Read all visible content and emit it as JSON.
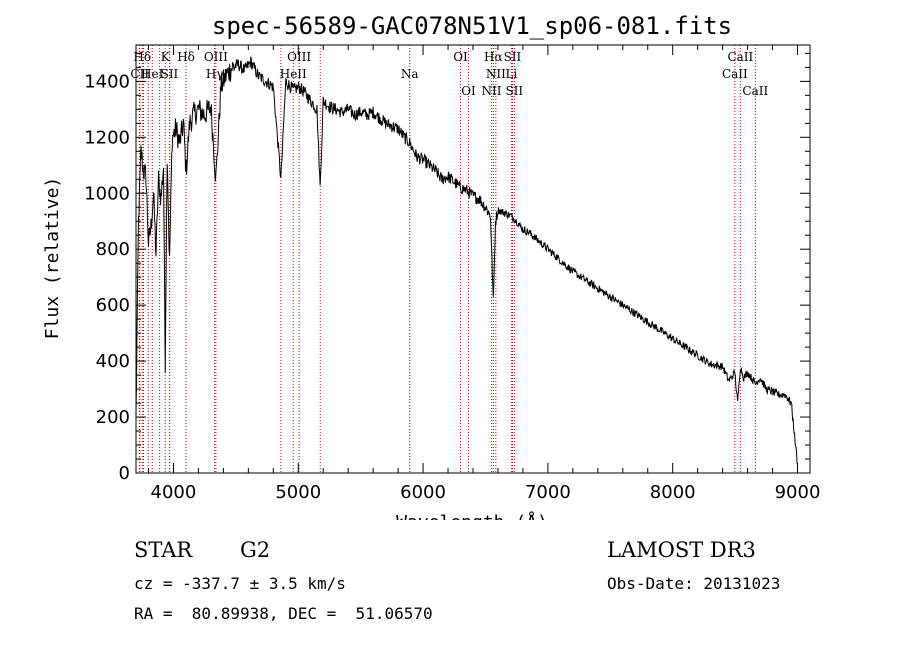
{
  "chart_data": {
    "type": "line",
    "title": "spec-56589-GAC078N51V1_sp06-081.fits",
    "xlabel": "Wavelength (Å)",
    "ylabel": "Flux (relative)",
    "xlim": [
      3700,
      9100
    ],
    "ylim": [
      0,
      1530
    ],
    "xticks": [
      4000,
      5000,
      6000,
      7000,
      8000,
      9000
    ],
    "xtick_labels": [
      "4000",
      "5000",
      "6000",
      "7000",
      "8000",
      "9000"
    ],
    "yticks": [
      0,
      200,
      400,
      600,
      800,
      1000,
      1200,
      1400
    ],
    "ytick_labels": [
      "0",
      "200",
      "400",
      "600",
      "800",
      "1000",
      "1200",
      "1400"
    ],
    "spectrum": {
      "x": [
        3700,
        3720,
        3740,
        3760,
        3780,
        3800,
        3820,
        3840,
        3860,
        3880,
        3900,
        3920,
        3934,
        3950,
        3968,
        3990,
        4020,
        4050,
        4080,
        4101,
        4130,
        4160,
        4200,
        4250,
        4300,
        4340,
        4380,
        4420,
        4470,
        4520,
        4570,
        4620,
        4680,
        4740,
        4800,
        4861,
        4900,
        4960,
        5007,
        5050,
        5100,
        5150,
        5175,
        5200,
        5250,
        5300,
        5350,
        5400,
        5450,
        5500,
        5550,
        5600,
        5650,
        5700,
        5750,
        5800,
        5850,
        5893,
        5950,
        6000,
        6050,
        6100,
        6150,
        6200,
        6250,
        6300,
        6350,
        6400,
        6450,
        6500,
        6540,
        6563,
        6580,
        6600,
        6650,
        6700,
        6750,
        6800,
        6850,
        6900,
        6950,
        7000,
        7100,
        7200,
        7300,
        7400,
        7500,
        7600,
        7700,
        7800,
        7900,
        8000,
        8100,
        8200,
        8300,
        8400,
        8450,
        8498,
        8520,
        8542,
        8570,
        8600,
        8662,
        8700,
        8750,
        8800,
        8850,
        8900,
        8950,
        9000
      ],
      "y": [
        200,
        900,
        1150,
        1080,
        1060,
        820,
        880,
        1000,
        780,
        1050,
        980,
        1100,
        400,
        1150,
        750,
        1200,
        1230,
        1180,
        1250,
        1080,
        1250,
        1280,
        1300,
        1280,
        1310,
        1050,
        1380,
        1420,
        1450,
        1460,
        1440,
        1470,
        1420,
        1400,
        1380,
        1050,
        1400,
        1370,
        1380,
        1360,
        1330,
        1300,
        1020,
        1330,
        1310,
        1300,
        1290,
        1300,
        1280,
        1290,
        1280,
        1290,
        1270,
        1250,
        1240,
        1230,
        1200,
        1180,
        1130,
        1120,
        1100,
        1080,
        1050,
        1060,
        1040,
        1020,
        1010,
        990,
        980,
        950,
        920,
        610,
        900,
        940,
        930,
        920,
        900,
        870,
        860,
        840,
        820,
        800,
        760,
        720,
        690,
        660,
        630,
        600,
        570,
        540,
        510,
        480,
        450,
        420,
        390,
        380,
        330,
        360,
        250,
        380,
        340,
        360,
        320,
        340,
        300,
        290,
        280,
        280,
        250,
        30
      ]
    },
    "lines": [
      {
        "label": "Hδ",
        "wl": 3750,
        "row": 0
      },
      {
        "label": "CII",
        "wl": 3730,
        "row": 1
      },
      {
        "label": "HeI",
        "wl": 3830,
        "row": 1
      },
      {
        "label": "K",
        "wl": 3934,
        "row": 0
      },
      {
        "label": "SII",
        "wl": 3968,
        "row": 1
      },
      {
        "label": "Hδ",
        "wl": 4101,
        "row": 0
      },
      {
        "label": "OIII",
        "wl": 4340,
        "row": 0
      },
      {
        "label": "Hγ",
        "wl": 4330,
        "row": 1
      },
      {
        "label": "OIII",
        "wl": 5007,
        "row": 0
      },
      {
        "label": "HeII",
        "wl": 4960,
        "row": 1
      },
      {
        "label": "Na",
        "wl": 5893,
        "row": 1
      },
      {
        "label": "OI",
        "wl": 6300,
        "row": 0
      },
      {
        "label": "OI",
        "wl": 6364,
        "row": 2
      },
      {
        "label": "Hα",
        "wl": 6563,
        "row": 0
      },
      {
        "label": "NII",
        "wl": 6583,
        "row": 1
      },
      {
        "label": "NII",
        "wl": 6548,
        "row": 2
      },
      {
        "label": "SII",
        "wl": 6716,
        "row": 0
      },
      {
        "label": "Li",
        "wl": 6708,
        "row": 1
      },
      {
        "label": "SII",
        "wl": 6731,
        "row": 2
      },
      {
        "label": "CaII",
        "wl": 8542,
        "row": 0
      },
      {
        "label": "CaII",
        "wl": 8498,
        "row": 1
      },
      {
        "label": "CaII",
        "wl": 8662,
        "row": 2
      }
    ],
    "extra_lines_wl": [
      3727,
      3760,
      3798,
      3889,
      3970,
      4861,
      5176
    ],
    "colors": {
      "spectrum": "#000000",
      "lines": "#cc0000"
    }
  },
  "info": {
    "object_class": "STAR",
    "subclass": "G2",
    "survey": "LAMOST DR3",
    "cz": "cz = -337.7 ± 3.5 km/s",
    "obs_date": "Obs-Date: 20131023",
    "coords": "RA =  80.89938, DEC =  51.06570"
  }
}
